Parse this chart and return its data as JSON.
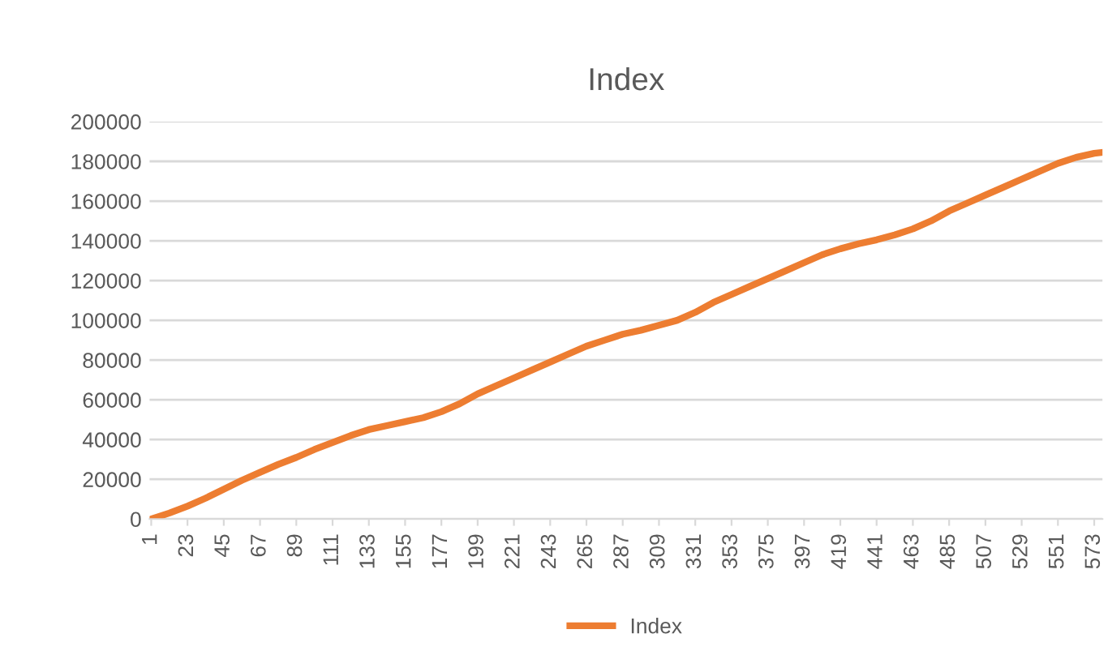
{
  "chart_data": {
    "type": "line",
    "title": "Index",
    "x": [
      1,
      12,
      23,
      34,
      45,
      56,
      67,
      78,
      89,
      100,
      111,
      122,
      133,
      144,
      155,
      166,
      177,
      188,
      199,
      210,
      221,
      232,
      243,
      254,
      265,
      276,
      287,
      298,
      309,
      320,
      331,
      342,
      353,
      364,
      375,
      386,
      397,
      408,
      419,
      430,
      441,
      452,
      463,
      474,
      485,
      496,
      507,
      518,
      529,
      540,
      551,
      562,
      573,
      578
    ],
    "series": [
      {
        "name": "Index",
        "color": "#ed7d31",
        "values": [
          0,
          3000,
          6500,
          10500,
          15000,
          19500,
          23500,
          27500,
          31000,
          35000,
          38500,
          42000,
          45000,
          47000,
          49000,
          51000,
          54000,
          58000,
          63000,
          67000,
          71000,
          75000,
          79000,
          83000,
          87000,
          90000,
          93000,
          95000,
          97500,
          100000,
          104000,
          109000,
          113000,
          117000,
          121000,
          125000,
          129000,
          133000,
          136000,
          138500,
          140500,
          143000,
          146000,
          150000,
          155000,
          159000,
          163000,
          167000,
          171000,
          175000,
          179000,
          182000,
          184000,
          184500
        ]
      }
    ],
    "xlim": [
      0,
      578
    ],
    "xticks": [
      1,
      23,
      45,
      67,
      89,
      111,
      133,
      155,
      177,
      199,
      221,
      243,
      265,
      287,
      309,
      331,
      353,
      375,
      397,
      419,
      441,
      463,
      485,
      507,
      529,
      551,
      573
    ],
    "ylim": [
      0,
      200000
    ],
    "yticks": [
      0,
      20000,
      40000,
      60000,
      80000,
      100000,
      120000,
      140000,
      160000,
      180000,
      200000
    ],
    "grid": "y",
    "legend": "bottom",
    "marker": "none",
    "line_style": "solid"
  }
}
